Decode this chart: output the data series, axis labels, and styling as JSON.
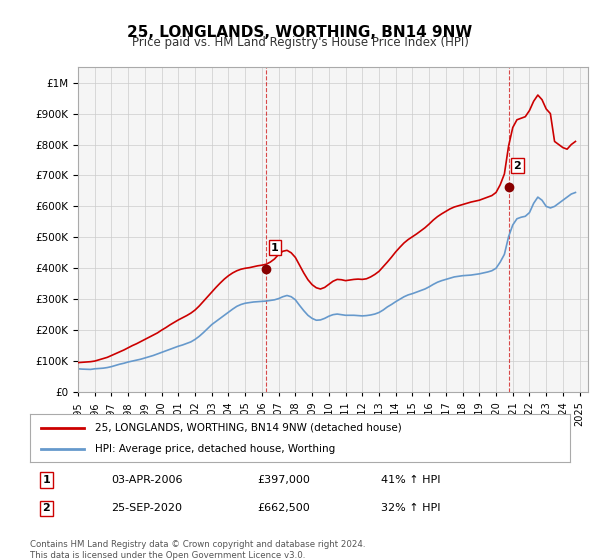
{
  "title": "25, LONGLANDS, WORTHING, BN14 9NW",
  "subtitle": "Price paid vs. HM Land Registry's House Price Index (HPI)",
  "ylabel_ticks": [
    "£0",
    "£100K",
    "£200K",
    "£300K",
    "£400K",
    "£500K",
    "£600K",
    "£700K",
    "£800K",
    "£900K",
    "£1M"
  ],
  "ytick_values": [
    0,
    100000,
    200000,
    300000,
    400000,
    500000,
    600000,
    700000,
    800000,
    900000,
    1000000
  ],
  "ylim": [
    0,
    1050000
  ],
  "xlim_start": 1995.0,
  "xlim_end": 2025.5,
  "xtick_years": [
    1995,
    1996,
    1997,
    1998,
    1999,
    2000,
    2001,
    2002,
    2003,
    2004,
    2005,
    2006,
    2007,
    2008,
    2009,
    2010,
    2011,
    2012,
    2013,
    2014,
    2015,
    2016,
    2017,
    2018,
    2019,
    2020,
    2021,
    2022,
    2023,
    2024,
    2025
  ],
  "legend_line1": "25, LONGLANDS, WORTHING, BN14 9NW (detached house)",
  "legend_line2": "HPI: Average price, detached house, Worthing",
  "sale1_label": "1",
  "sale1_date": "03-APR-2006",
  "sale1_price": "£397,000",
  "sale1_hpi": "41% ↑ HPI",
  "sale1_x": 2006.25,
  "sale1_y": 397000,
  "sale2_label": "2",
  "sale2_date": "25-SEP-2020",
  "sale2_price": "£662,500",
  "sale2_hpi": "32% ↑ HPI",
  "sale2_x": 2020.75,
  "sale2_y": 662500,
  "footnote": "Contains HM Land Registry data © Crown copyright and database right 2024.\nThis data is licensed under the Open Government Licence v3.0.",
  "line_color_red": "#cc0000",
  "line_color_blue": "#6699cc",
  "vline_color": "#cc0000",
  "grid_color": "#cccccc",
  "background_color": "#ffffff",
  "plot_bg_color": "#f5f5f5",
  "hpi_data_x": [
    1995.0,
    1995.25,
    1995.5,
    1995.75,
    1996.0,
    1996.25,
    1996.5,
    1996.75,
    1997.0,
    1997.25,
    1997.5,
    1997.75,
    1998.0,
    1998.25,
    1998.5,
    1998.75,
    1999.0,
    1999.25,
    1999.5,
    1999.75,
    2000.0,
    2000.25,
    2000.5,
    2000.75,
    2001.0,
    2001.25,
    2001.5,
    2001.75,
    2002.0,
    2002.25,
    2002.5,
    2002.75,
    2003.0,
    2003.25,
    2003.5,
    2003.75,
    2004.0,
    2004.25,
    2004.5,
    2004.75,
    2005.0,
    2005.25,
    2005.5,
    2005.75,
    2006.0,
    2006.25,
    2006.5,
    2006.75,
    2007.0,
    2007.25,
    2007.5,
    2007.75,
    2008.0,
    2008.25,
    2008.5,
    2008.75,
    2009.0,
    2009.25,
    2009.5,
    2009.75,
    2010.0,
    2010.25,
    2010.5,
    2010.75,
    2011.0,
    2011.25,
    2011.5,
    2011.75,
    2012.0,
    2012.25,
    2012.5,
    2012.75,
    2013.0,
    2013.25,
    2013.5,
    2013.75,
    2014.0,
    2014.25,
    2014.5,
    2014.75,
    2015.0,
    2015.25,
    2015.5,
    2015.75,
    2016.0,
    2016.25,
    2016.5,
    2016.75,
    2017.0,
    2017.25,
    2017.5,
    2017.75,
    2018.0,
    2018.25,
    2018.5,
    2018.75,
    2019.0,
    2019.25,
    2019.5,
    2019.75,
    2020.0,
    2020.25,
    2020.5,
    2020.75,
    2021.0,
    2021.25,
    2021.5,
    2021.75,
    2022.0,
    2022.25,
    2022.5,
    2022.75,
    2023.0,
    2023.25,
    2023.5,
    2023.75,
    2024.0,
    2024.25,
    2024.5,
    2024.75
  ],
  "hpi_data_y": [
    75000,
    74000,
    73500,
    73000,
    75000,
    76000,
    77000,
    79000,
    82000,
    86000,
    90000,
    93000,
    97000,
    100000,
    103000,
    106000,
    110000,
    114000,
    118000,
    123000,
    128000,
    133000,
    138000,
    143000,
    148000,
    152000,
    157000,
    162000,
    170000,
    180000,
    192000,
    205000,
    218000,
    228000,
    238000,
    248000,
    258000,
    268000,
    277000,
    283000,
    287000,
    289000,
    291000,
    292000,
    293000,
    294000,
    296000,
    298000,
    302000,
    308000,
    312000,
    308000,
    298000,
    280000,
    263000,
    248000,
    238000,
    232000,
    233000,
    238000,
    245000,
    250000,
    252000,
    250000,
    248000,
    248000,
    248000,
    247000,
    246000,
    247000,
    249000,
    252000,
    257000,
    265000,
    275000,
    283000,
    292000,
    300000,
    308000,
    314000,
    318000,
    323000,
    328000,
    333000,
    340000,
    348000,
    355000,
    360000,
    364000,
    368000,
    372000,
    374000,
    376000,
    377000,
    378000,
    380000,
    382000,
    385000,
    388000,
    392000,
    400000,
    420000,
    445000,
    502000,
    540000,
    560000,
    565000,
    568000,
    580000,
    610000,
    630000,
    620000,
    600000,
    595000,
    600000,
    610000,
    620000,
    630000,
    640000,
    645000
  ],
  "price_data_x": [
    1995.0,
    1995.25,
    1995.5,
    1995.75,
    1996.0,
    1996.25,
    1996.5,
    1996.75,
    1997.0,
    1997.25,
    1997.5,
    1997.75,
    1998.0,
    1998.25,
    1998.5,
    1998.75,
    1999.0,
    1999.25,
    1999.5,
    1999.75,
    2000.0,
    2000.25,
    2000.5,
    2000.75,
    2001.0,
    2001.25,
    2001.5,
    2001.75,
    2002.0,
    2002.25,
    2002.5,
    2002.75,
    2003.0,
    2003.25,
    2003.5,
    2003.75,
    2004.0,
    2004.25,
    2004.5,
    2004.75,
    2005.0,
    2005.25,
    2005.5,
    2005.75,
    2006.0,
    2006.25,
    2006.5,
    2006.75,
    2007.0,
    2007.25,
    2007.5,
    2007.75,
    2008.0,
    2008.25,
    2008.5,
    2008.75,
    2009.0,
    2009.25,
    2009.5,
    2009.75,
    2010.0,
    2010.25,
    2010.5,
    2010.75,
    2011.0,
    2011.25,
    2011.5,
    2011.75,
    2012.0,
    2012.25,
    2012.5,
    2012.75,
    2013.0,
    2013.25,
    2013.5,
    2013.75,
    2014.0,
    2014.25,
    2014.5,
    2014.75,
    2015.0,
    2015.25,
    2015.5,
    2015.75,
    2016.0,
    2016.25,
    2016.5,
    2016.75,
    2017.0,
    2017.25,
    2017.5,
    2017.75,
    2018.0,
    2018.25,
    2018.5,
    2018.75,
    2019.0,
    2019.25,
    2019.5,
    2019.75,
    2020.0,
    2020.25,
    2020.5,
    2020.75,
    2021.0,
    2021.25,
    2021.5,
    2021.75,
    2022.0,
    2022.25,
    2022.5,
    2022.75,
    2023.0,
    2023.25,
    2023.5,
    2023.75,
    2024.0,
    2024.25,
    2024.5,
    2024.75
  ],
  "price_data_y": [
    95000,
    96000,
    97000,
    98000,
    100000,
    104000,
    108000,
    112000,
    118000,
    124000,
    130000,
    136000,
    143000,
    150000,
    156000,
    163000,
    170000,
    177000,
    184000,
    191000,
    200000,
    208000,
    217000,
    225000,
    233000,
    240000,
    247000,
    255000,
    265000,
    278000,
    293000,
    308000,
    323000,
    338000,
    352000,
    365000,
    376000,
    385000,
    392000,
    397000,
    400000,
    402000,
    405000,
    408000,
    410000,
    413000,
    420000,
    430000,
    445000,
    455000,
    458000,
    450000,
    435000,
    410000,
    385000,
    363000,
    347000,
    337000,
    333000,
    338000,
    348000,
    358000,
    364000,
    363000,
    360000,
    362000,
    364000,
    365000,
    364000,
    366000,
    372000,
    380000,
    390000,
    405000,
    420000,
    436000,
    453000,
    468000,
    482000,
    493000,
    502000,
    511000,
    521000,
    531000,
    543000,
    556000,
    567000,
    576000,
    584000,
    592000,
    598000,
    602000,
    606000,
    610000,
    614000,
    617000,
    620000,
    625000,
    630000,
    635000,
    645000,
    670000,
    705000,
    795000,
    855000,
    880000,
    885000,
    890000,
    910000,
    940000,
    960000,
    945000,
    915000,
    900000,
    810000,
    800000,
    790000,
    785000,
    800000,
    810000
  ]
}
